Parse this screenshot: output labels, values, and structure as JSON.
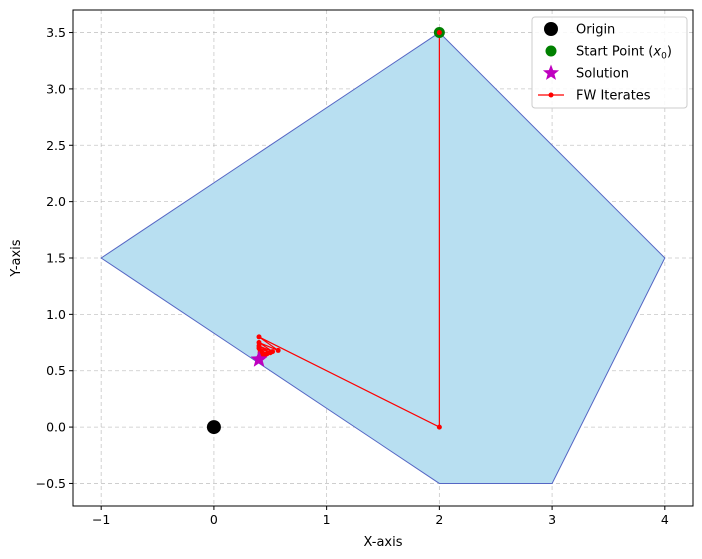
{
  "chart_data": {
    "type": "scatter",
    "title": "",
    "xlabel": "X-axis",
    "ylabel": "Y-axis",
    "xlim": [
      -1.25,
      4.25
    ],
    "ylim": [
      -0.7,
      3.7
    ],
    "x_ticks": [
      -1,
      0,
      1,
      2,
      3,
      4
    ],
    "x_tick_labels": [
      "−1",
      "0",
      "1",
      "2",
      "3",
      "4"
    ],
    "y_ticks": [
      -0.5,
      0.0,
      0.5,
      1.0,
      1.5,
      2.0,
      2.5,
      3.0,
      3.5
    ],
    "y_tick_labels": [
      "−0.5",
      "0.0",
      "0.5",
      "1.0",
      "1.5",
      "2.0",
      "2.5",
      "3.0",
      "3.5"
    ],
    "grid": true,
    "legend_position": "top-right",
    "feasible_region": {
      "vertices": [
        [
          -1,
          1.5
        ],
        [
          2,
          3.5
        ],
        [
          4,
          1.5
        ],
        [
          3,
          -0.5
        ],
        [
          2,
          -0.5
        ]
      ],
      "fill_color": "#b8dff1",
      "edge_color": "#5566c4"
    },
    "series": [
      {
        "name": "Origin",
        "kind": "marker",
        "shape": "circle",
        "color": "#000000",
        "points": [
          [
            0,
            0
          ]
        ]
      },
      {
        "name": "Start Point",
        "name_subscript": "0",
        "kind": "marker",
        "shape": "circle",
        "color": "#008000",
        "points": [
          [
            2,
            3.5
          ]
        ]
      },
      {
        "name": "Solution",
        "kind": "marker",
        "shape": "star",
        "color": "#bf00bf",
        "points": [
          [
            0.4,
            0.6
          ]
        ]
      },
      {
        "name": "FW Iterates",
        "kind": "line",
        "color": "#ff0000",
        "points": [
          [
            2,
            3.5
          ],
          [
            2,
            0
          ],
          [
            0.4,
            0.8
          ],
          [
            0.57,
            0.68
          ],
          [
            0.4,
            0.75
          ],
          [
            0.52,
            0.67
          ],
          [
            0.4,
            0.72
          ],
          [
            0.5,
            0.66
          ],
          [
            0.4,
            0.7
          ],
          [
            0.47,
            0.65
          ],
          [
            0.41,
            0.68
          ],
          [
            0.45,
            0.64
          ],
          [
            0.41,
            0.66
          ],
          [
            0.43,
            0.63
          ],
          [
            0.4,
            0.62
          ]
        ]
      }
    ]
  }
}
